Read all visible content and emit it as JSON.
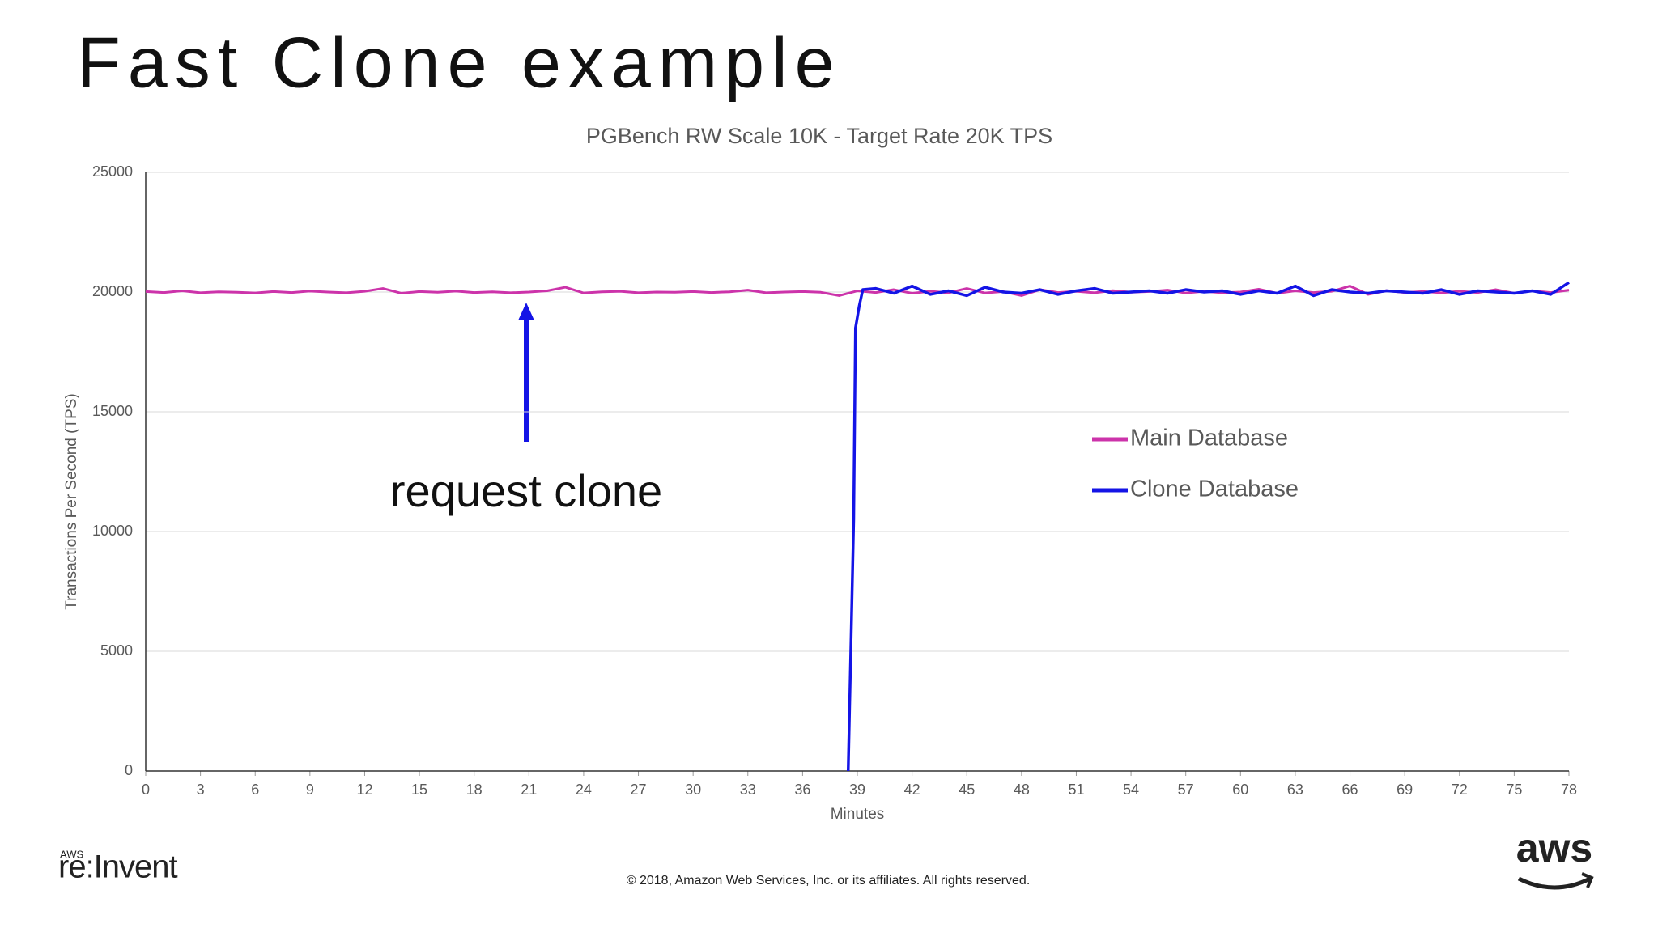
{
  "slide_title": "Fast Clone example",
  "annotation": "request clone",
  "footer": {
    "copyright": "© 2018, Amazon Web Services, Inc. or its affiliates. All rights reserved.",
    "event_small": "AWS",
    "event": "re:Invent",
    "logo": "aws"
  },
  "chart_data": {
    "type": "line",
    "title": "PGBench RW Scale 10K - Target Rate 20K TPS",
    "x_label": "Minutes",
    "y_label": "Transactions Per Second (TPS)",
    "xlim": [
      0,
      78
    ],
    "ylim": [
      0,
      25000
    ],
    "xticks": [
      0,
      3,
      6,
      9,
      12,
      15,
      18,
      21,
      24,
      27,
      30,
      33,
      36,
      39,
      42,
      45,
      48,
      51,
      54,
      57,
      60,
      63,
      66,
      69,
      72,
      75,
      78
    ],
    "yticks": [
      0,
      5000,
      10000,
      15000,
      20000,
      25000
    ],
    "grid": true,
    "legend": "right",
    "series": [
      {
        "name": "Main Database",
        "color": "#cc33aa",
        "x": [
          0,
          1,
          2,
          3,
          4,
          5,
          6,
          7,
          8,
          9,
          10,
          11,
          12,
          13,
          14,
          15,
          16,
          17,
          18,
          19,
          20,
          21,
          22,
          23,
          24,
          25,
          26,
          27,
          28,
          29,
          30,
          31,
          32,
          33,
          34,
          35,
          36,
          37,
          38,
          39,
          40,
          41,
          42,
          43,
          44,
          45,
          46,
          47,
          48,
          49,
          50,
          51,
          52,
          53,
          54,
          55,
          56,
          57,
          58,
          59,
          60,
          61,
          62,
          63,
          64,
          65,
          66,
          67,
          68,
          69,
          70,
          71,
          72,
          73,
          74,
          75,
          76,
          77,
          78
        ],
        "values": [
          20020,
          19980,
          20050,
          19970,
          20010,
          19990,
          19960,
          20020,
          19980,
          20040,
          20000,
          19970,
          20030,
          20150,
          19950,
          20020,
          19990,
          20040,
          19980,
          20010,
          19970,
          20000,
          20050,
          20200,
          19960,
          20010,
          20030,
          19970,
          20000,
          19990,
          20020,
          19980,
          20010,
          20080,
          19970,
          20000,
          20020,
          19990,
          19850,
          20050,
          19980,
          20100,
          19950,
          20030,
          19970,
          20150,
          19960,
          20020,
          19850,
          20100,
          19980,
          20030,
          19970,
          20060,
          19990,
          20020,
          20080,
          19960,
          20030,
          19970,
          20000,
          20120,
          19950,
          20050,
          19980,
          20030,
          20250,
          19900,
          20060,
          19980,
          20020,
          19970,
          20030,
          19980,
          20100,
          19950,
          20050,
          19980,
          20080
        ]
      },
      {
        "name": "Clone Database",
        "color": "#1414e6",
        "x": [
          38.5,
          38.8,
          38.9,
          39.1,
          39.3,
          40,
          41,
          42,
          43,
          44,
          45,
          46,
          47,
          48,
          49,
          50,
          51,
          52,
          53,
          54,
          55,
          56,
          57,
          58,
          59,
          60,
          61,
          62,
          63,
          64,
          65,
          66,
          67,
          68,
          69,
          70,
          71,
          72,
          73,
          74,
          75,
          76,
          77,
          78
        ],
        "values": [
          0,
          10500,
          18500,
          19400,
          20100,
          20150,
          19950,
          20250,
          19900,
          20050,
          19850,
          20200,
          20000,
          19950,
          20100,
          19900,
          20050,
          20150,
          19950,
          20000,
          20050,
          19950,
          20100,
          20000,
          20050,
          19900,
          20050,
          19950,
          20250,
          19850,
          20100,
          20000,
          19950,
          20050,
          20000,
          19950,
          20100,
          19900,
          20050,
          20000,
          19950,
          20050,
          19900,
          20400
        ]
      }
    ]
  }
}
